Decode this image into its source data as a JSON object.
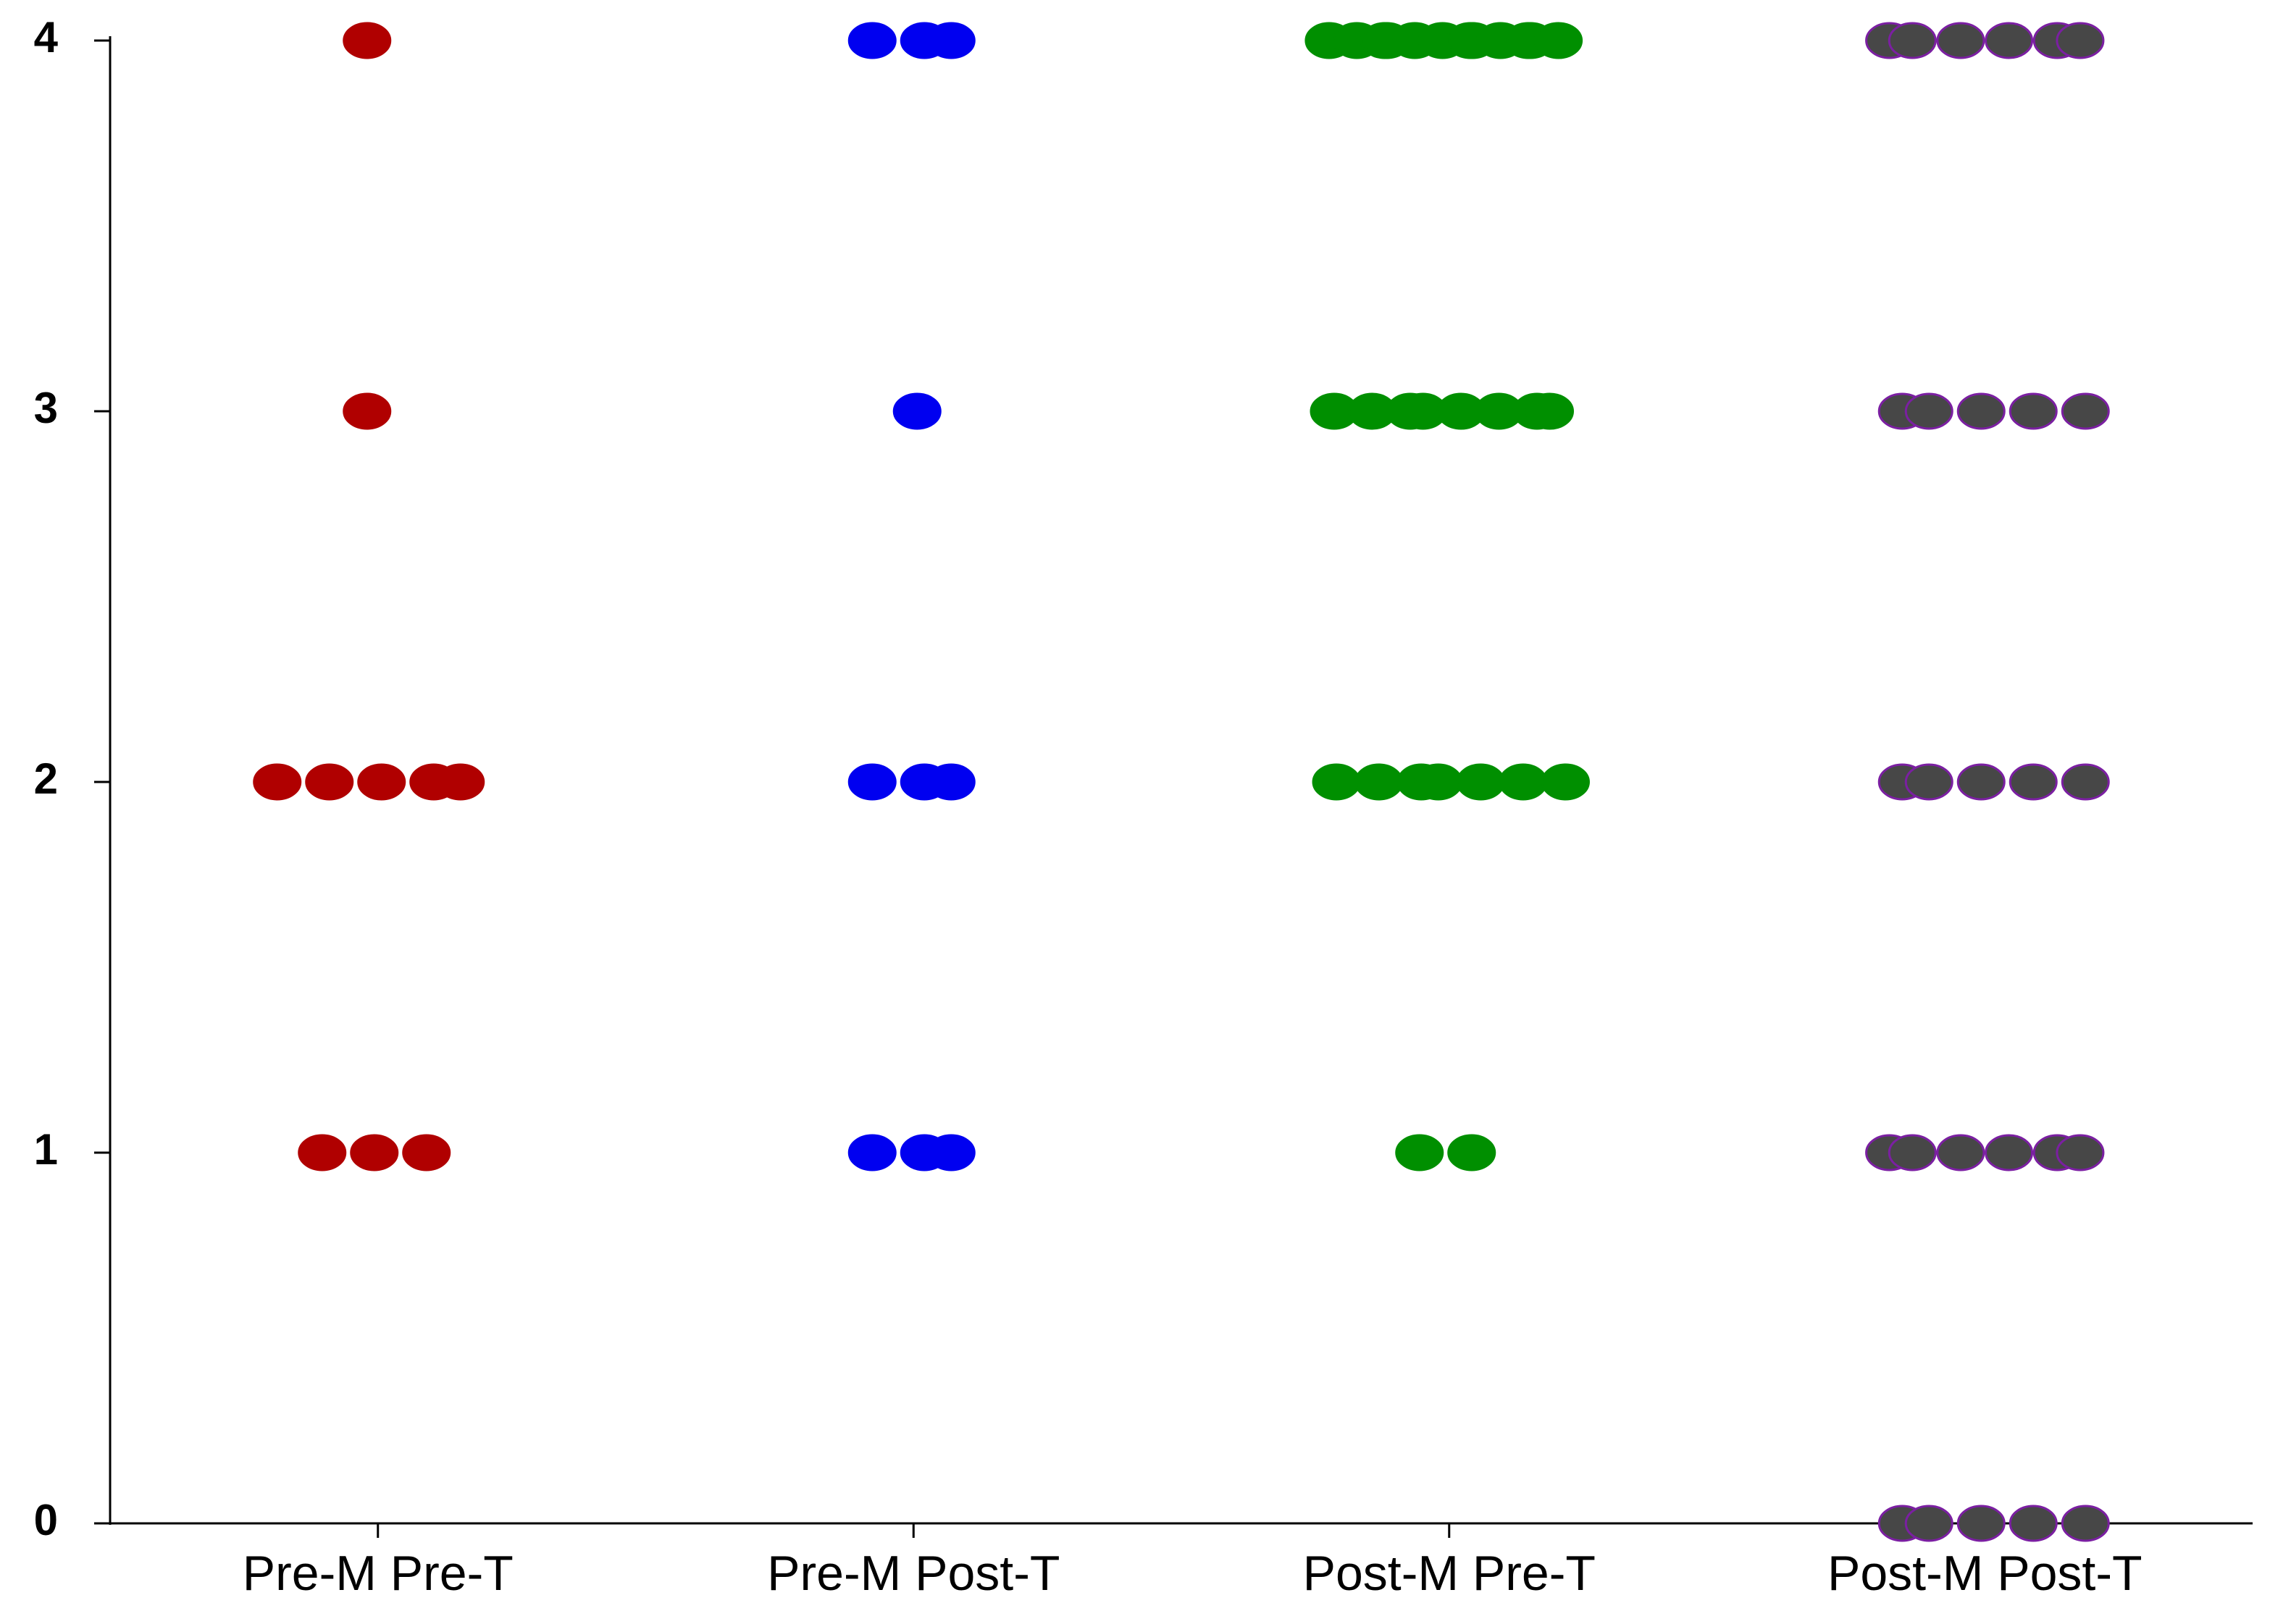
{
  "chart_data": {
    "type": "strip",
    "categories": [
      "Pre-M Pre-T",
      "Pre-M Post-T",
      "Post-M Pre-T",
      "Post-M Post-T"
    ],
    "values": [
      [
        4,
        3,
        2,
        2,
        2,
        2,
        2,
        1,
        1,
        1
      ],
      [
        4,
        4,
        4,
        3,
        2,
        2,
        2,
        1,
        1,
        1
      ],
      [
        4,
        4,
        4,
        4,
        4,
        4,
        4,
        4,
        4,
        4,
        4,
        4,
        3,
        3,
        3,
        3,
        3,
        3,
        3,
        3,
        2,
        2,
        2,
        2,
        2,
        2,
        2,
        1,
        1
      ],
      [
        4,
        4,
        4,
        4,
        4,
        4,
        3,
        3,
        3,
        3,
        3,
        2,
        2,
        2,
        2,
        2,
        1,
        1,
        1,
        1,
        1,
        1,
        0,
        0,
        0,
        0,
        0
      ]
    ],
    "colors": [
      "#b00000",
      "#0000f0",
      "#008f00",
      "#474747"
    ],
    "edgecolors": [
      "#b00000",
      "#0000f0",
      "#008f00",
      "#7b1fa2"
    ],
    "ylim": [
      0,
      4
    ],
    "yticks": [
      0,
      1,
      2,
      3,
      4
    ],
    "grid": false
  }
}
